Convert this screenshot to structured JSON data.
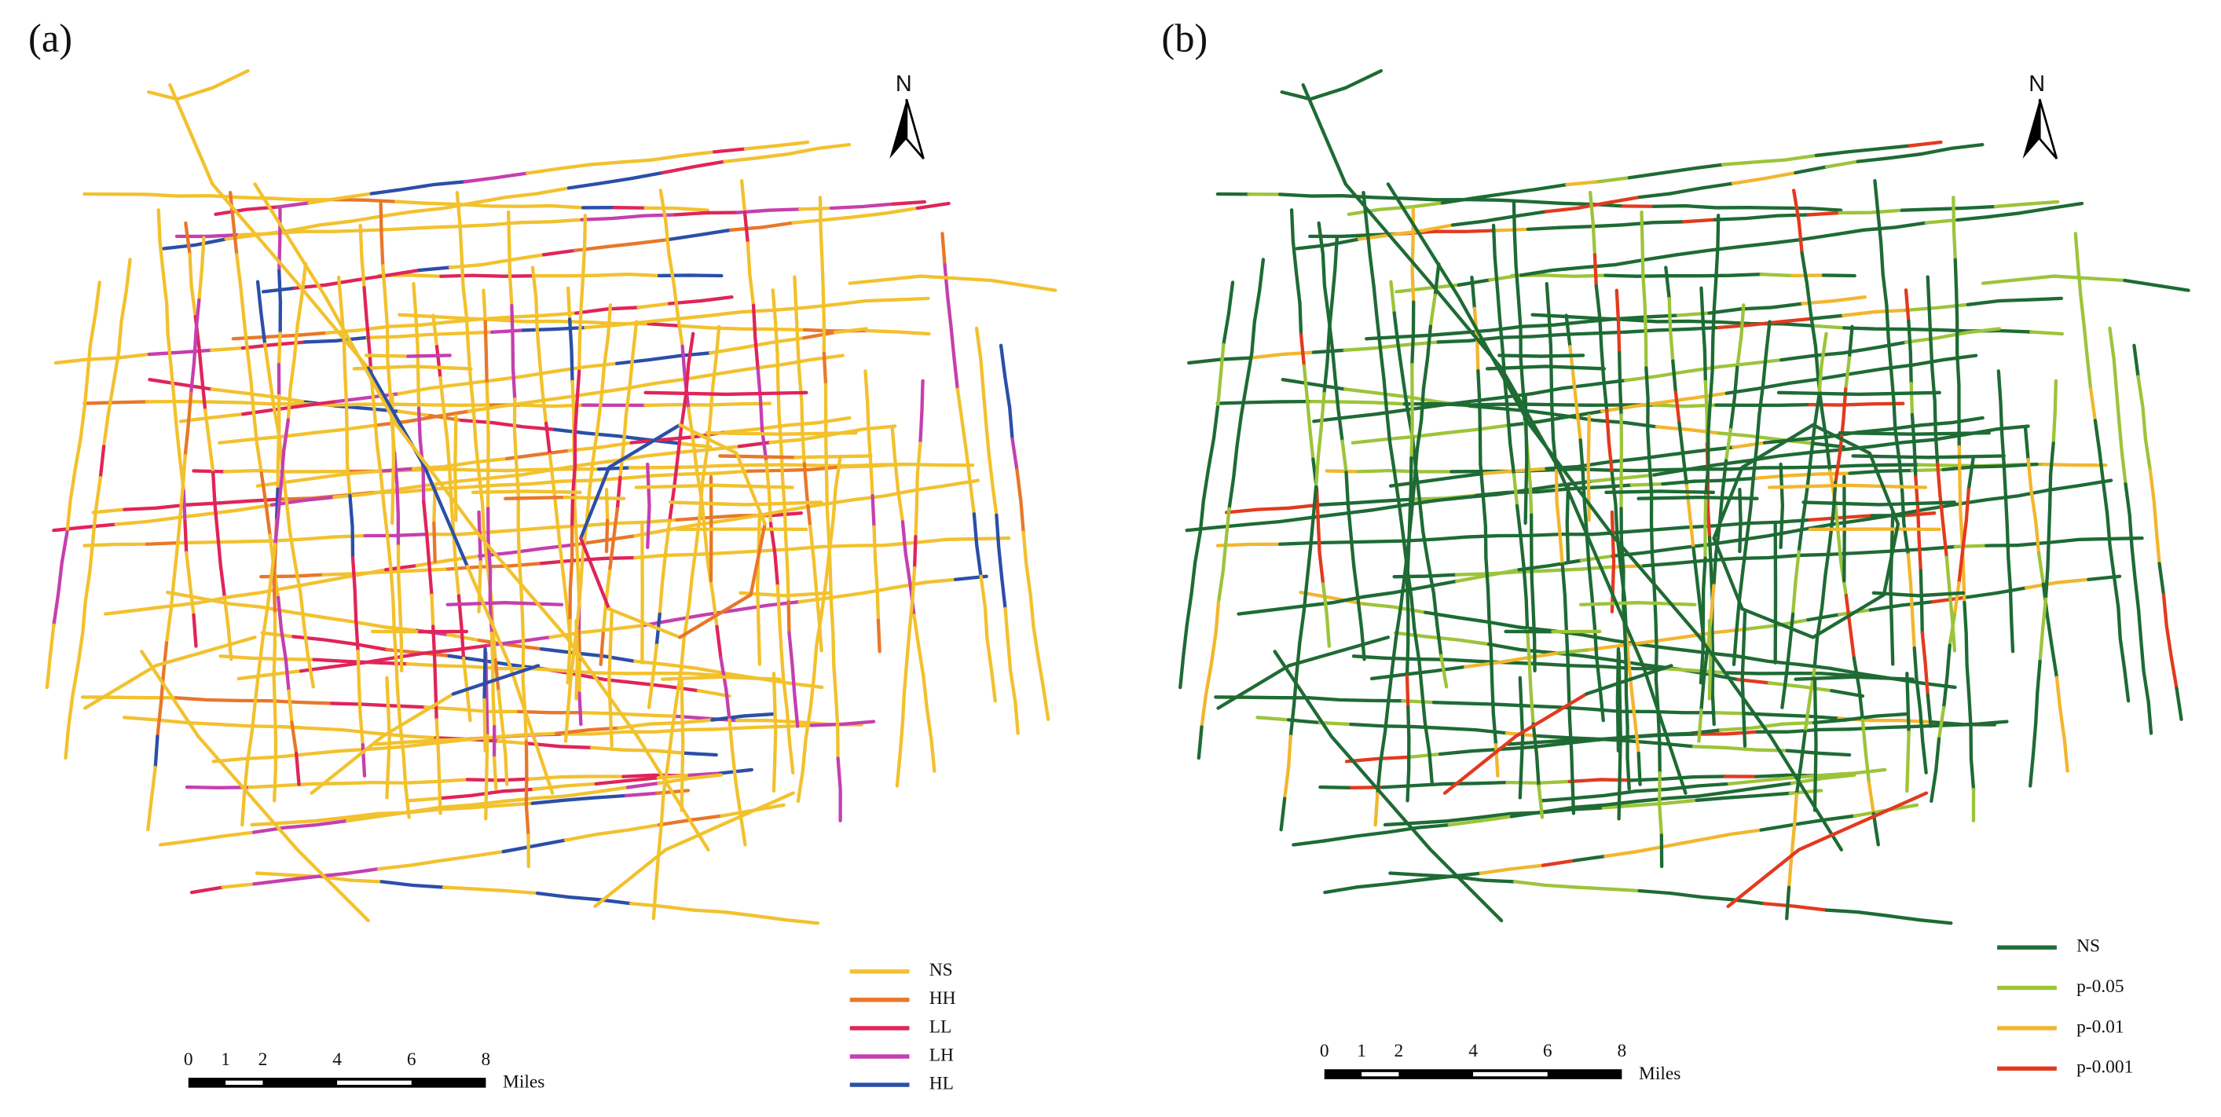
{
  "panels": [
    {
      "label": "(a)",
      "north": "N",
      "legend": [
        {
          "name": "NS",
          "color": "#f2c12e"
        },
        {
          "name": "HH",
          "color": "#e8772a"
        },
        {
          "name": "LL",
          "color": "#e0245a"
        },
        {
          "name": "LH",
          "color": "#c53fae"
        },
        {
          "name": "HL",
          "color": "#2a4fa8"
        }
      ],
      "scale": {
        "ticks": [
          0,
          1,
          2,
          4,
          6,
          8
        ],
        "unit": "Miles"
      }
    },
    {
      "label": "(b)",
      "north": "N",
      "legend": [
        {
          "name": "NS",
          "color": "#1e6b34"
        },
        {
          "name": "p-0.05",
          "color": "#9cc43a"
        },
        {
          "name": "p-0.01",
          "color": "#f2b62e"
        },
        {
          "name": "p-0.001",
          "color": "#e23a1e"
        }
      ],
      "scale": {
        "ticks": [
          0,
          1,
          2,
          4,
          6,
          8
        ],
        "unit": "Miles"
      }
    }
  ]
}
